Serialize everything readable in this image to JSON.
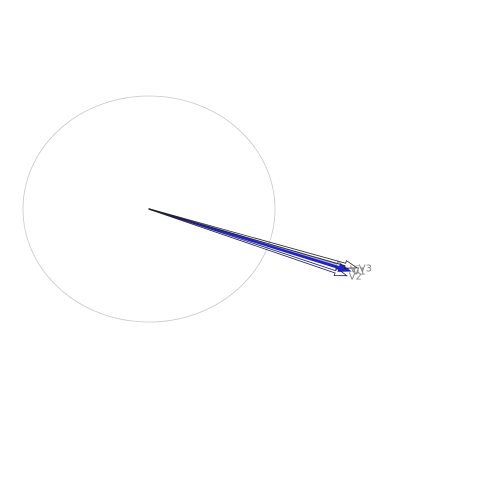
{
  "chart_data": {
    "type": "vector",
    "title": "",
    "xlabel": "",
    "ylabel": "",
    "grid": false,
    "legend": "none",
    "reference_circle": {
      "center": [
        0,
        0
      ],
      "radius": 1.0,
      "color": "#c8c8c8"
    },
    "vectors": [
      {
        "label": "Vi",
        "x": 1.58,
        "y": -0.53,
        "color": "#808080"
      },
      {
        "label": "V1",
        "x": 1.6,
        "y": -0.55,
        "color": "#2222cc"
      },
      {
        "label": "V2",
        "x": 1.57,
        "y": -0.59,
        "color": "#1a1a66"
      },
      {
        "label": "V3",
        "x": 1.65,
        "y": -0.52,
        "color": "#222222"
      }
    ]
  }
}
